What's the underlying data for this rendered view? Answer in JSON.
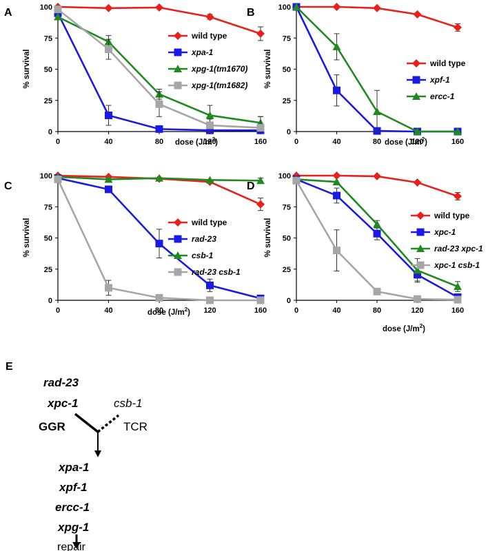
{
  "colors": {
    "wt": "#e8201b",
    "blue": "#1a1ae6",
    "green": "#1f8a1f",
    "gray": "#a6a6a6"
  },
  "chart_data": [
    {
      "panel": "A",
      "type": "line",
      "x": [
        0,
        40,
        80,
        120,
        160
      ],
      "xlabel": "dose (J/m",
      "xlabel_sup": "2",
      "xlabel_tail": ")",
      "ylabel": "% survival",
      "xlim": [
        0,
        160
      ],
      "ylim": [
        0,
        100
      ],
      "yticks": [
        0,
        25,
        50,
        75,
        100
      ],
      "xticks": [
        0,
        40,
        80,
        120,
        160
      ],
      "legend_position": "right",
      "series": [
        {
          "name": "wild type",
          "color": "#e8201b",
          "marker": "diamond",
          "values": [
            100,
            99,
            99.5,
            92,
            78.5
          ],
          "err": [
            0,
            0,
            0,
            2,
            5.5
          ]
        },
        {
          "name": "xpa-1",
          "color": "#1a1ae6",
          "marker": "square",
          "values": [
            95,
            13,
            2,
            1,
            1
          ],
          "err": [
            0,
            8,
            0,
            0,
            0
          ]
        },
        {
          "name": "xpg-1(tm1670)",
          "color": "#1f8a1f",
          "marker": "triangle",
          "values": [
            92,
            72,
            30,
            13,
            7
          ],
          "err": [
            0,
            5,
            4,
            8,
            5
          ]
        },
        {
          "name": "xpg-1(tm1682)",
          "color": "#a6a6a6",
          "marker": "square",
          "values": [
            98,
            66,
            22,
            5,
            3
          ],
          "err": [
            0,
            8,
            10,
            5,
            9
          ]
        }
      ]
    },
    {
      "panel": "B",
      "type": "line",
      "x": [
        0,
        40,
        80,
        120,
        160
      ],
      "xlabel": "dose (J/m",
      "xlabel_sup": "2",
      "xlabel_tail": ")",
      "ylabel": "% survival",
      "xlim": [
        0,
        160
      ],
      "ylim": [
        0,
        100
      ],
      "yticks": [
        0,
        25,
        50,
        75,
        100
      ],
      "xticks": [
        0,
        40,
        80,
        120,
        160
      ],
      "legend_position": "right",
      "series": [
        {
          "name": "wild type",
          "color": "#e8201b",
          "marker": "diamond",
          "values": [
            100,
            100,
            99,
            94,
            83.5
          ],
          "err": [
            0,
            0,
            0,
            0,
            3
          ]
        },
        {
          "name": "xpf-1",
          "color": "#1a1ae6",
          "marker": "square",
          "values": [
            100,
            33,
            0.5,
            0,
            0
          ],
          "err": [
            0,
            12.5,
            0,
            0,
            0
          ]
        },
        {
          "name": "ercc-1",
          "color": "#1f8a1f",
          "marker": "triangle",
          "values": [
            100,
            68,
            16,
            0,
            0
          ],
          "err": [
            0,
            10.5,
            17,
            0,
            0
          ]
        }
      ]
    },
    {
      "panel": "C",
      "type": "line",
      "x": [
        0,
        40,
        80,
        120,
        160
      ],
      "xlabel": "dose (J/m",
      "xlabel_sup": "2",
      "xlabel_tail": ")",
      "ylabel": "% survival",
      "xlim": [
        0,
        160
      ],
      "ylim": [
        0,
        100
      ],
      "yticks": [
        0,
        25,
        50,
        75,
        100
      ],
      "xticks": [
        0,
        40,
        80,
        120,
        160
      ],
      "legend_position": "right",
      "series": [
        {
          "name": "wild type",
          "color": "#e8201b",
          "marker": "diamond",
          "values": [
            100,
            99,
            97.5,
            95,
            77
          ],
          "err": [
            0,
            0,
            0,
            0,
            5
          ]
        },
        {
          "name": "rad-23",
          "color": "#1a1ae6",
          "marker": "square",
          "values": [
            98,
            89,
            45.5,
            12,
            1.5
          ],
          "err": [
            0,
            0,
            11.5,
            5,
            0
          ]
        },
        {
          "name": "csb-1",
          "color": "#1f8a1f",
          "marker": "triangle",
          "values": [
            99,
            97,
            98,
            96.5,
            96
          ],
          "err": [
            0,
            0,
            0,
            0,
            2
          ]
        },
        {
          "name": "rad-23 csb-1",
          "color": "#a6a6a6",
          "marker": "square",
          "values": [
            97,
            10,
            2,
            0,
            0
          ],
          "err": [
            0,
            6,
            0,
            0,
            0
          ]
        }
      ]
    },
    {
      "panel": "D",
      "type": "line",
      "x": [
        0,
        40,
        80,
        120,
        160
      ],
      "xlabel": "dose (J/m",
      "xlabel_sup": "2",
      "xlabel_tail": ")",
      "ylabel": "% survival",
      "xlim": [
        0,
        160
      ],
      "ylim": [
        0,
        100
      ],
      "yticks": [
        0,
        25,
        50,
        75,
        100
      ],
      "xticks": [
        0,
        40,
        80,
        120,
        160
      ],
      "legend_position": "right",
      "series": [
        {
          "name": "wild type",
          "color": "#e8201b",
          "marker": "diamond",
          "values": [
            100,
            100,
            99.5,
            94.5,
            83.5
          ],
          "err": [
            0,
            0,
            0,
            0,
            3
          ]
        },
        {
          "name": "xpc-1",
          "color": "#1a1ae6",
          "marker": "square",
          "values": [
            97,
            84,
            53.5,
            20.5,
            2.5
          ],
          "err": [
            0,
            6,
            5,
            5,
            0
          ]
        },
        {
          "name": "rad-23 xpc-1",
          "color": "#1f8a1f",
          "marker": "triangle",
          "values": [
            97,
            95,
            61,
            24,
            11
          ],
          "err": [
            0,
            0,
            3,
            9.5,
            4
          ]
        },
        {
          "name": "xpc-1 csb-1",
          "color": "#a6a6a6",
          "marker": "square",
          "values": [
            96,
            40,
            7,
            1,
            0.5
          ],
          "err": [
            0,
            16.5,
            0,
            0,
            0
          ]
        }
      ]
    }
  ],
  "scheme": {
    "letter": "E",
    "ggr_genes": [
      "rad-23",
      "xpc-1"
    ],
    "ggr_label": "GGR",
    "tcr_gene": "csb-1",
    "tcr_label": "TCR",
    "core_genes": [
      "xpa-1",
      "xpf-1",
      "ercc-1",
      "xpg-1"
    ],
    "outcome": "repair"
  }
}
